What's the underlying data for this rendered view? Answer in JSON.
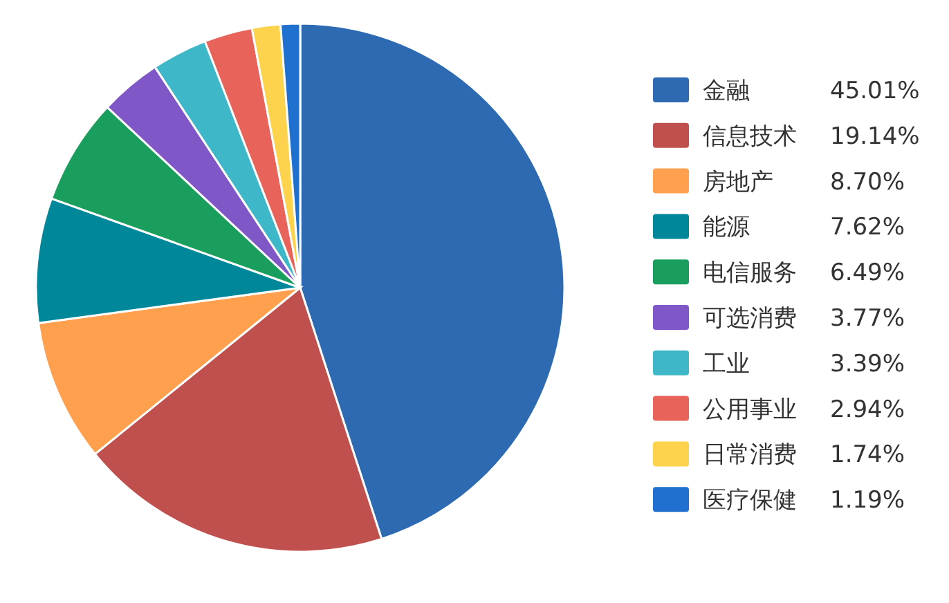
{
  "chart_data": {
    "type": "pie",
    "legend": "right",
    "categories": [
      "金融",
      "信息技术",
      "房地产",
      "能源",
      "电信服务",
      "可选消费",
      "工业",
      "公用事业",
      "日常消费",
      "医疗保健"
    ],
    "values": [
      45.01,
      19.14,
      8.7,
      7.62,
      6.49,
      3.77,
      3.39,
      2.94,
      1.74,
      1.19
    ],
    "value_labels": [
      "45.01%",
      "19.14%",
      "8.70%",
      "7.62%",
      "6.49%",
      "3.77%",
      "3.39%",
      "2.94%",
      "1.74%",
      "1.19%"
    ],
    "colors": [
      "#2e6ab1",
      "#c0504d",
      "#ffa04f",
      "#00889a",
      "#1a9e5e",
      "#8057c6",
      "#3eb8c9",
      "#e8645a",
      "#fdd24c",
      "#1f70cf"
    ]
  }
}
